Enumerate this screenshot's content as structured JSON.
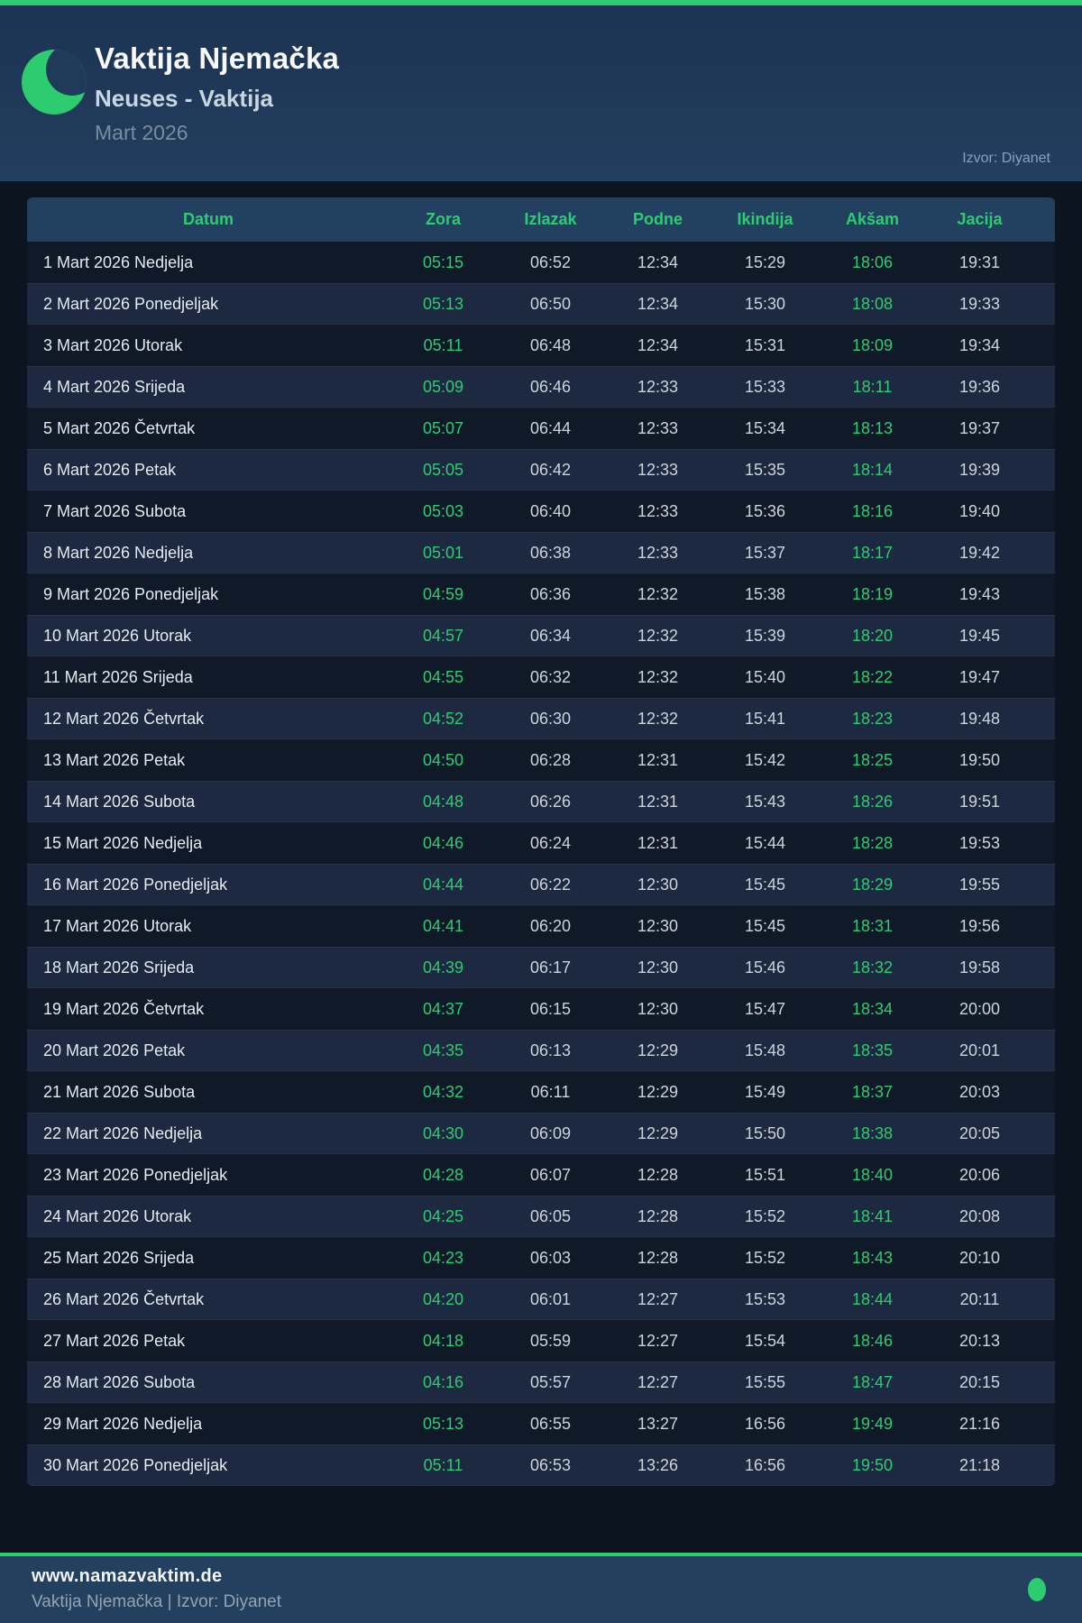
{
  "header": {
    "title": "Vaktija Njemačka",
    "subtitle": "Neuses - Vaktija",
    "month": "Mart 2026",
    "source": "Izvor: Diyanet"
  },
  "table": {
    "columns": [
      "Datum",
      "Zora",
      "Izlazak",
      "Podne",
      "Ikindija",
      "Akšam",
      "Jacija"
    ],
    "rows": [
      {
        "date": "1 Mart 2026 Nedjelja",
        "times": [
          "05:15",
          "06:52",
          "12:34",
          "15:29",
          "18:06",
          "19:31"
        ]
      },
      {
        "date": "2 Mart 2026 Ponedjeljak",
        "times": [
          "05:13",
          "06:50",
          "12:34",
          "15:30",
          "18:08",
          "19:33"
        ]
      },
      {
        "date": "3 Mart 2026 Utorak",
        "times": [
          "05:11",
          "06:48",
          "12:34",
          "15:31",
          "18:09",
          "19:34"
        ]
      },
      {
        "date": "4 Mart 2026 Srijeda",
        "times": [
          "05:09",
          "06:46",
          "12:33",
          "15:33",
          "18:11",
          "19:36"
        ]
      },
      {
        "date": "5 Mart 2026 Četvrtak",
        "times": [
          "05:07",
          "06:44",
          "12:33",
          "15:34",
          "18:13",
          "19:37"
        ]
      },
      {
        "date": "6 Mart 2026 Petak",
        "times": [
          "05:05",
          "06:42",
          "12:33",
          "15:35",
          "18:14",
          "19:39"
        ]
      },
      {
        "date": "7 Mart 2026 Subota",
        "times": [
          "05:03",
          "06:40",
          "12:33",
          "15:36",
          "18:16",
          "19:40"
        ]
      },
      {
        "date": "8 Mart 2026 Nedjelja",
        "times": [
          "05:01",
          "06:38",
          "12:33",
          "15:37",
          "18:17",
          "19:42"
        ]
      },
      {
        "date": "9 Mart 2026 Ponedjeljak",
        "times": [
          "04:59",
          "06:36",
          "12:32",
          "15:38",
          "18:19",
          "19:43"
        ]
      },
      {
        "date": "10 Mart 2026 Utorak",
        "times": [
          "04:57",
          "06:34",
          "12:32",
          "15:39",
          "18:20",
          "19:45"
        ]
      },
      {
        "date": "11 Mart 2026 Srijeda",
        "times": [
          "04:55",
          "06:32",
          "12:32",
          "15:40",
          "18:22",
          "19:47"
        ]
      },
      {
        "date": "12 Mart 2026 Četvrtak",
        "times": [
          "04:52",
          "06:30",
          "12:32",
          "15:41",
          "18:23",
          "19:48"
        ]
      },
      {
        "date": "13 Mart 2026 Petak",
        "times": [
          "04:50",
          "06:28",
          "12:31",
          "15:42",
          "18:25",
          "19:50"
        ]
      },
      {
        "date": "14 Mart 2026 Subota",
        "times": [
          "04:48",
          "06:26",
          "12:31",
          "15:43",
          "18:26",
          "19:51"
        ]
      },
      {
        "date": "15 Mart 2026 Nedjelja",
        "times": [
          "04:46",
          "06:24",
          "12:31",
          "15:44",
          "18:28",
          "19:53"
        ]
      },
      {
        "date": "16 Mart 2026 Ponedjeljak",
        "times": [
          "04:44",
          "06:22",
          "12:30",
          "15:45",
          "18:29",
          "19:55"
        ]
      },
      {
        "date": "17 Mart 2026 Utorak",
        "times": [
          "04:41",
          "06:20",
          "12:30",
          "15:45",
          "18:31",
          "19:56"
        ]
      },
      {
        "date": "18 Mart 2026 Srijeda",
        "times": [
          "04:39",
          "06:17",
          "12:30",
          "15:46",
          "18:32",
          "19:58"
        ]
      },
      {
        "date": "19 Mart 2026 Četvrtak",
        "times": [
          "04:37",
          "06:15",
          "12:30",
          "15:47",
          "18:34",
          "20:00"
        ]
      },
      {
        "date": "20 Mart 2026 Petak",
        "times": [
          "04:35",
          "06:13",
          "12:29",
          "15:48",
          "18:35",
          "20:01"
        ]
      },
      {
        "date": "21 Mart 2026 Subota",
        "times": [
          "04:32",
          "06:11",
          "12:29",
          "15:49",
          "18:37",
          "20:03"
        ]
      },
      {
        "date": "22 Mart 2026 Nedjelja",
        "times": [
          "04:30",
          "06:09",
          "12:29",
          "15:50",
          "18:38",
          "20:05"
        ]
      },
      {
        "date": "23 Mart 2026 Ponedjeljak",
        "times": [
          "04:28",
          "06:07",
          "12:28",
          "15:51",
          "18:40",
          "20:06"
        ]
      },
      {
        "date": "24 Mart 2026 Utorak",
        "times": [
          "04:25",
          "06:05",
          "12:28",
          "15:52",
          "18:41",
          "20:08"
        ]
      },
      {
        "date": "25 Mart 2026 Srijeda",
        "times": [
          "04:23",
          "06:03",
          "12:28",
          "15:52",
          "18:43",
          "20:10"
        ]
      },
      {
        "date": "26 Mart 2026 Četvrtak",
        "times": [
          "04:20",
          "06:01",
          "12:27",
          "15:53",
          "18:44",
          "20:11"
        ]
      },
      {
        "date": "27 Mart 2026 Petak",
        "times": [
          "04:18",
          "05:59",
          "12:27",
          "15:54",
          "18:46",
          "20:13"
        ]
      },
      {
        "date": "28 Mart 2026 Subota",
        "times": [
          "04:16",
          "05:57",
          "12:27",
          "15:55",
          "18:47",
          "20:15"
        ]
      },
      {
        "date": "29 Mart 2026 Nedjelja",
        "times": [
          "05:13",
          "06:55",
          "13:27",
          "16:56",
          "19:49",
          "21:16"
        ]
      },
      {
        "date": "30 Mart 2026 Ponedjeljak",
        "times": [
          "05:11",
          "06:53",
          "13:26",
          "16:56",
          "19:50",
          "21:18"
        ]
      }
    ]
  },
  "footer": {
    "site": "www.namazvaktim.de",
    "tagline": "Vaktija Njemačka | Izvor: Diyanet"
  },
  "colors": {
    "accent_green": "#2ecc71",
    "header_bg": "#213a5a",
    "table_head_bg": "#224160",
    "row_odd": "#101927",
    "row_even": "#1c2940",
    "page_bg": "#0c141f",
    "footer_bg": "#23405e"
  }
}
